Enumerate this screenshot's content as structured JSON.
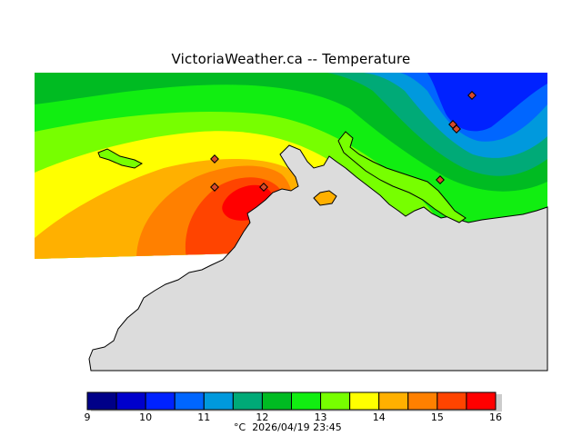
{
  "page": {
    "title": "VictoriaWeather.ca -- Temperature",
    "unit": "°C",
    "timestamp": "2026/04/19 23:45"
  },
  "colors": {
    "background": "#ffffff",
    "land": "#dcdcdc",
    "coastline": "#000000",
    "station_marker": "#d64a2a"
  },
  "legend": {
    "ticks": [
      "9",
      "10",
      "11",
      "12",
      "13",
      "14",
      "15",
      "16"
    ],
    "bands": [
      {
        "from": 9.0,
        "to": 9.5,
        "color": "#000088"
      },
      {
        "from": 9.5,
        "to": 10.0,
        "color": "#0000cc"
      },
      {
        "from": 10.0,
        "to": 10.5,
        "color": "#0022ff"
      },
      {
        "from": 10.5,
        "to": 11.0,
        "color": "#0066ff"
      },
      {
        "from": 11.0,
        "to": 11.5,
        "color": "#0099dd"
      },
      {
        "from": 11.5,
        "to": 12.0,
        "color": "#00aa77"
      },
      {
        "from": 12.0,
        "to": 12.5,
        "color": "#00bb22"
      },
      {
        "from": 12.5,
        "to": 13.0,
        "color": "#11ee11"
      },
      {
        "from": 13.0,
        "to": 13.5,
        "color": "#77ff00"
      },
      {
        "from": 13.5,
        "to": 14.0,
        "color": "#ffff00"
      },
      {
        "from": 14.0,
        "to": 14.5,
        "color": "#ffb000"
      },
      {
        "from": 14.5,
        "to": 15.0,
        "color": "#ff8000"
      },
      {
        "from": 15.0,
        "to": 15.5,
        "color": "#ff4400"
      },
      {
        "from": 15.5,
        "to": 16.0,
        "color": "#ff0000"
      }
    ]
  }
}
